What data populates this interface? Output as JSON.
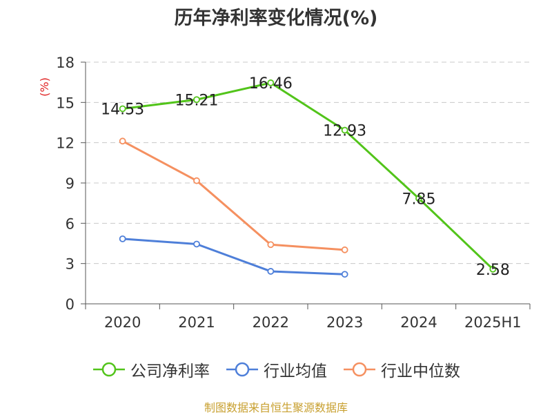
{
  "chart_data": {
    "type": "line",
    "title": "历年净利率变化情况(%)",
    "ylabel": "(%)",
    "categories": [
      "2020",
      "2021",
      "2022",
      "2023",
      "2024",
      "2025H1"
    ],
    "ylim": [
      0,
      18
    ],
    "yticks": [
      "0",
      "3",
      "6",
      "9",
      "12",
      "15",
      "18"
    ],
    "grid": "horizontal-dashed",
    "legend_position": "bottom",
    "series": [
      {
        "name": "公司净利率",
        "color": "#52c41a",
        "values": [
          14.53,
          15.21,
          16.46,
          12.93,
          7.85,
          2.58
        ],
        "labels": [
          "14.53",
          "15.21",
          "16.46",
          "12.93",
          "7.85",
          "2.58"
        ]
      },
      {
        "name": "行业均值",
        "color": "#4e7fd9",
        "values": [
          4.84,
          4.45,
          2.42,
          2.2,
          null,
          null
        ]
      },
      {
        "name": "行业中位数",
        "color": "#f59060",
        "values": [
          12.12,
          9.17,
          4.41,
          4.02,
          null,
          null
        ]
      }
    ]
  },
  "source": "制图数据来自恒生聚源数据库",
  "ylabel_color": "#e02020"
}
